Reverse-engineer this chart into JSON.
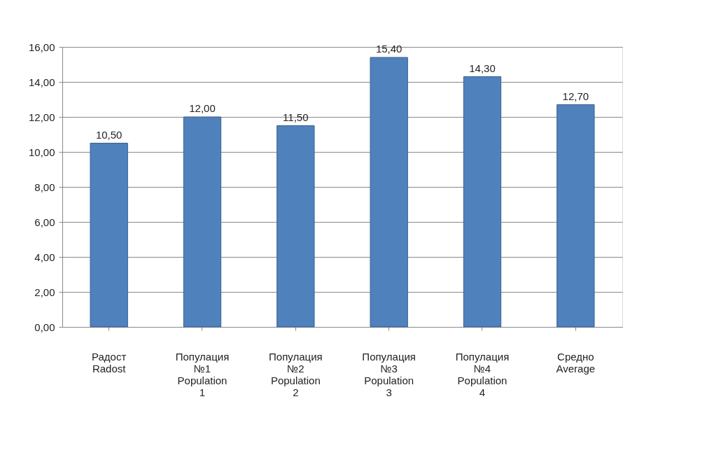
{
  "chart_data": {
    "type": "bar",
    "categories": [
      "Радост\nRadost",
      "Популация\n№1\nPopulation\n1",
      "Популация\n№2\nPopulation\n2",
      "Популация\n№3\nPopulation\n3",
      "Популация\n№4\nPopulation\n4",
      "Средно\nAverage"
    ],
    "values": [
      10.5,
      12.0,
      11.5,
      15.4,
      14.3,
      12.7
    ],
    "value_labels": [
      "10,50",
      "12,00",
      "11,50",
      "15,40",
      "14,30",
      "12,70"
    ],
    "color": "#4f81bd",
    "ylim": [
      0,
      16
    ],
    "yticks": [
      {
        "value": 0,
        "label": "0,00"
      },
      {
        "value": 2,
        "label": "2,00"
      },
      {
        "value": 4,
        "label": "4,00"
      },
      {
        "value": 6,
        "label": "6,00"
      },
      {
        "value": 8,
        "label": "8,00"
      },
      {
        "value": 10,
        "label": "10,00"
      },
      {
        "value": 12,
        "label": "12,00"
      },
      {
        "value": 14,
        "label": "14,00"
      },
      {
        "value": 16,
        "label": "16,00"
      }
    ],
    "grid": "y"
  }
}
